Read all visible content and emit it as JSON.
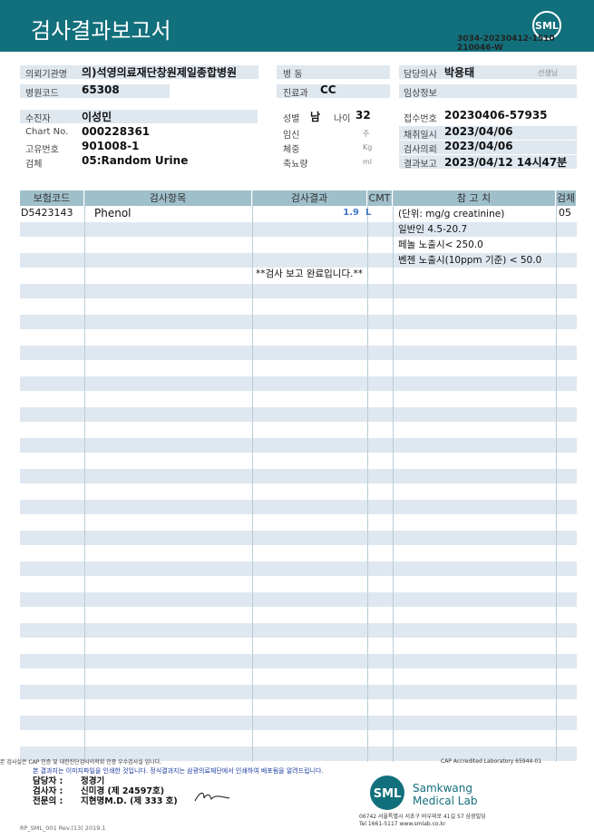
{
  "header": {
    "title": "검사결과보고서",
    "report_id": "3034-20230412-1510",
    "report_id_2": "210046-W",
    "logo": "SML"
  },
  "info": {
    "left": [
      {
        "label": "의뢰기관명",
        "value": "의)석영의료재단창원제일종합병원"
      },
      {
        "label": "병원코드",
        "value": "65308"
      },
      {
        "label": "수진자",
        "value": "이성민"
      },
      {
        "label": "Chart No.",
        "value": "000228361"
      },
      {
        "label": "고유번호",
        "value": "901008-1"
      },
      {
        "label": "검체",
        "value": "05:Random Urine"
      }
    ],
    "middle": [
      {
        "label": "병 동"
      },
      {
        "label": "진료과",
        "value": "CC"
      },
      {
        "label": "성별",
        "value": "남",
        "label2": "나이",
        "value2": "32"
      },
      {
        "label": "임신",
        "unit": "주"
      },
      {
        "label": "체중",
        "unit": "Kg"
      },
      {
        "label": "축뇨량",
        "unit": "ml"
      }
    ],
    "right": [
      {
        "label": "담당의사",
        "value": "박용태",
        "unit": "선생님"
      },
      {
        "label": "임상정보"
      },
      {
        "label": "접수번호",
        "value": "20230406-57935"
      },
      {
        "label": "채취일시",
        "value": "2023/04/06"
      },
      {
        "label": "검사의뢰",
        "value": "2023/04/06"
      },
      {
        "label": "결과보고",
        "value": "2023/04/12 14시47분"
      }
    ]
  },
  "table": {
    "headers": [
      "보험코드",
      "검사항목",
      "검사결과",
      "CMT",
      "참 고 치",
      "검체"
    ],
    "rows": [
      {
        "code": "D5423143",
        "item": "Phenol",
        "result": "1.9",
        "flag": "L",
        "reference": [
          "(단위: mg/g creatinine)",
          "일반인 4.5-20.7",
          "페놀 노출시< 250.0",
          "벤젠 노출시(10ppm 기준) < 50.0"
        ],
        "specimen": "05"
      }
    ],
    "note": "**검사  보고  완료입니다.**"
  },
  "footer": {
    "fine_print": "본 검사실은 CAP 인증 및 대한진단검사의학회 인증 우수검사실 입니다.",
    "cap": "CAP Accredited Laboratory 65944-01",
    "notice": "본 결과지는 이미지파일을 인쇄한 것입니다. 정식결과지는 삼광의료재단에서 인쇄하여 배포됨을 알려드립니다.",
    "signatures": [
      {
        "role": "담당자 :",
        "name": "정경기"
      },
      {
        "role": "검사자 :",
        "name": "신미경 (제 24597호)"
      },
      {
        "role": "전문의 :",
        "name": "지현명M.D. (제 333 호)"
      }
    ],
    "lab_logo": "SML",
    "lab_name_1": "Samkwang",
    "lab_name_2": "Medical Lab",
    "address": "06742 서울특별시 서초구 바우뫼로 41길 57 삼광빌딩",
    "contact": "Tel 1661-5117 www.smlab.co.kr",
    "form_code": "RP_SML_001 Rev.(13) 2019.1"
  }
}
